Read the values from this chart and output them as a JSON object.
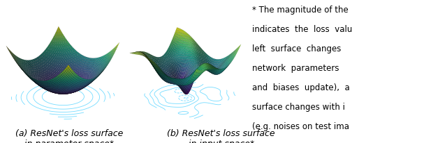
{
  "caption_a": "(a) ResNet's loss surface\n    in parameter space*",
  "caption_b": "(b) ResNet's loss surface\n    in input space*",
  "background_color": "#ffffff",
  "figsize": [
    6.4,
    2.07
  ],
  "dpi": 100,
  "text_lines": [
    "* The magnitude of the",
    "indicates  the  loss  valu",
    "left  surface  changes",
    "network  parameters",
    "and  biases  update),  a",
    "surface changes with i",
    "(e.g. noises on test ima"
  ],
  "text_fontsize": 8.5,
  "caption_fontsize": 9.0,
  "contour_color": "#00bfff",
  "contour_alpha": 0.55,
  "contour_linewidth": 0.6
}
